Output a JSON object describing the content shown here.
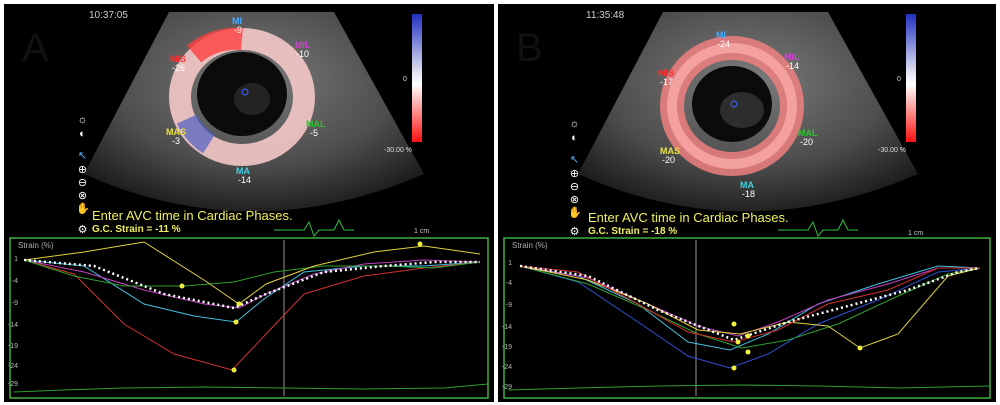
{
  "panels": [
    {
      "letter": "A",
      "timestamp": "10:37:05",
      "segments": [
        {
          "name": "MI",
          "value": "-9",
          "color": "#4aa8ff"
        },
        {
          "name": "MIL",
          "value": "-10",
          "color": "#d040d0"
        },
        {
          "name": "MIS",
          "value": "-26",
          "color": "#ff3030"
        },
        {
          "name": "MAL",
          "value": "-5",
          "color": "#30c030"
        },
        {
          "name": "MAS",
          "value": "-3",
          "color": "#e8e040"
        },
        {
          "name": "MA",
          "value": "-14",
          "color": "#40d0e0"
        }
      ],
      "scale_max": "-30.00 %",
      "scale_zero": "0",
      "avc_text": "Enter AVC time in Cardiac Phases.",
      "gc_strain": "G.C. Strain = -11 %",
      "cm": "1 cm",
      "strain_label": "Strain (%)",
      "yticks": [
        "1",
        "-4",
        "-9",
        "-14",
        "-19",
        "-24",
        "-29"
      ]
    },
    {
      "letter": "B",
      "timestamp": "11:35:48",
      "segments": [
        {
          "name": "MI",
          "value": "-24",
          "color": "#4aa8ff"
        },
        {
          "name": "MIL",
          "value": "-14",
          "color": "#d040d0"
        },
        {
          "name": "MIS",
          "value": "-17",
          "color": "#ff3030"
        },
        {
          "name": "MAL",
          "value": "-20",
          "color": "#30c030"
        },
        {
          "name": "MAS",
          "value": "-20",
          "color": "#e8e040"
        },
        {
          "name": "MA",
          "value": "-18",
          "color": "#40d0e0"
        }
      ],
      "scale_max": "-30.00 %",
      "scale_zero": "0",
      "avc_text": "Enter AVC time in Cardiac Phases.",
      "gc_strain": "G.C. Strain = -18 %",
      "cm": "1 cm",
      "strain_label": "Strain (%)",
      "yticks": [
        "1",
        "-4",
        "-9",
        "-14",
        "-19",
        "-24",
        "-29"
      ]
    }
  ],
  "icons": [
    "brightness-icon",
    "contrast-icon",
    "pointer-icon",
    "zoom-in-icon",
    "zoom-out-icon",
    "reset-icon",
    "pan-hand-icon",
    "settings-icon"
  ]
}
